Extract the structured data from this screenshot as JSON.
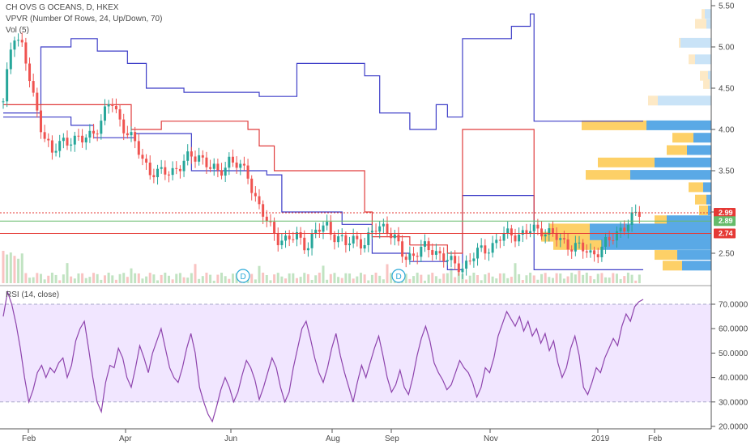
{
  "chart_data": [
    {
      "type": "candlestick",
      "title": "CH OVS G OCEANS, D, HKEX",
      "indicator_labels": [
        "VPVR (Number Of Rows, 24, Up/Down, 70)",
        "Vol (5)"
      ],
      "x_ticks": [
        "Feb",
        "Apr",
        "Jun",
        "Aug",
        "Sep",
        "Nov",
        "2019",
        "Feb"
      ],
      "y_ticks": [
        "2.50",
        "3.00",
        "3.50",
        "4.00",
        "4.50",
        "5.00",
        "5.50"
      ],
      "ylim": [
        2.2,
        5.55
      ],
      "price_tags": [
        {
          "value": "2.99",
          "color": "#e53935"
        },
        {
          "value": "2.89",
          "color": "#66bb6a"
        },
        {
          "value": "2.74",
          "color": "#e53935"
        }
      ],
      "dividend_markers": [
        "D",
        "D"
      ],
      "close_path": [
        [
          0,
          4.3
        ],
        [
          1,
          5.2
        ],
        [
          2,
          5.0
        ],
        [
          3,
          4.4
        ],
        [
          4,
          4.0
        ],
        [
          5,
          3.7
        ],
        [
          6,
          3.85
        ],
        [
          7,
          3.9
        ],
        [
          8,
          3.85
        ],
        [
          9,
          3.95
        ],
        [
          10,
          4.1
        ],
        [
          11,
          4.35
        ],
        [
          12,
          4.1
        ],
        [
          13,
          3.9
        ],
        [
          14,
          3.7
        ],
        [
          15,
          3.5
        ],
        [
          16,
          3.45
        ],
        [
          17,
          3.5
        ],
        [
          18,
          3.55
        ],
        [
          19,
          3.65
        ],
        [
          20,
          3.7
        ],
        [
          21,
          3.55
        ],
        [
          22,
          3.45
        ],
        [
          23,
          3.65
        ],
        [
          24,
          3.55
        ],
        [
          25,
          3.45
        ],
        [
          26,
          3.1
        ],
        [
          27,
          2.85
        ],
        [
          28,
          2.7
        ],
        [
          29,
          2.65
        ],
        [
          30,
          2.7
        ],
        [
          31,
          2.6
        ],
        [
          32,
          2.75
        ],
        [
          33,
          2.85
        ],
        [
          34,
          2.7
        ],
        [
          35,
          2.6
        ],
        [
          36,
          2.7
        ],
        [
          37,
          2.6
        ],
        [
          38,
          2.8
        ],
        [
          39,
          2.85
        ],
        [
          40,
          2.65
        ],
        [
          41,
          2.45
        ],
        [
          42,
          2.5
        ],
        [
          43,
          2.55
        ],
        [
          44,
          2.55
        ],
        [
          45,
          2.45
        ],
        [
          46,
          2.35
        ],
        [
          47,
          2.35
        ],
        [
          48,
          2.45
        ],
        [
          49,
          2.55
        ],
        [
          50,
          2.6
        ],
        [
          51,
          2.7
        ],
        [
          52,
          2.75
        ],
        [
          53,
          2.72
        ],
        [
          54,
          2.78
        ],
        [
          55,
          2.8
        ],
        [
          56,
          2.72
        ],
        [
          57,
          2.65
        ],
        [
          58,
          2.6
        ],
        [
          59,
          2.55
        ],
        [
          60,
          2.5
        ],
        [
          61,
          2.55
        ],
        [
          62,
          2.65
        ],
        [
          63,
          2.8
        ],
        [
          64,
          2.88
        ],
        [
          65,
          2.99
        ]
      ],
      "overlay_lines": [
        {
          "color": "#3f3fc8",
          "name": ""
        },
        {
          "color": "#e03c3c",
          "name": ""
        },
        {
          "color": "#66bb6a",
          "name": ""
        }
      ]
    },
    {
      "type": "line",
      "title": "RSI (14, close)",
      "y_ticks": [
        "20.0000",
        "30.0000",
        "40.0000",
        "50.0000",
        "60.0000",
        "70.0000"
      ],
      "ylim": [
        18,
        78
      ],
      "bands": [
        30,
        70
      ],
      "values": [
        65,
        75,
        70,
        62,
        52,
        40,
        30,
        35,
        42,
        45,
        40,
        44,
        42,
        46,
        48,
        40,
        45,
        55,
        60,
        63,
        52,
        40,
        30,
        26,
        38,
        45,
        44,
        52,
        48,
        40,
        36,
        44,
        53,
        48,
        42,
        50,
        55,
        60,
        52,
        44,
        40,
        38,
        44,
        52,
        58,
        50,
        36,
        30,
        25,
        22,
        28,
        35,
        40,
        36,
        30,
        34,
        41,
        47,
        44,
        39,
        31,
        36,
        42,
        48,
        44,
        36,
        30,
        34,
        44,
        52,
        60,
        63,
        56,
        48,
        42,
        38,
        44,
        52,
        58,
        49,
        42,
        36,
        30,
        38,
        45,
        40,
        46,
        52,
        57,
        49,
        40,
        34,
        37,
        43,
        36,
        33,
        40,
        49,
        56,
        61,
        55,
        46,
        42,
        39,
        35,
        37,
        42,
        47,
        44,
        42,
        38,
        32,
        36,
        44,
        42,
        48,
        57,
        62,
        67,
        64,
        61,
        65,
        59,
        63,
        57,
        60,
        54,
        58,
        51,
        55,
        46,
        40,
        44,
        52,
        57,
        49,
        36,
        33,
        38,
        44,
        42,
        48,
        52,
        56,
        53,
        61,
        66,
        63,
        69,
        71,
        72
      ]
    }
  ]
}
